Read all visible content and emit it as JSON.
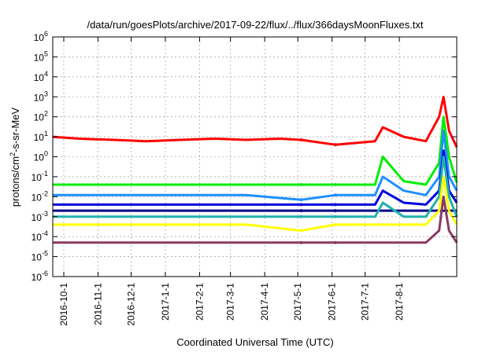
{
  "chart_data": {
    "type": "line",
    "title": "/data/run/goesPlots/archive/2017-09-22/flux/../flux/366daysMoonFluxes.txt",
    "xlabel": "Coordinated Universal Time (UTC)",
    "ylabel_main": "protons/cm",
    "ylabel_sup": "2",
    "ylabel_tail": "-s-sr-MeV",
    "yscale": "log",
    "ylim": [
      1e-06,
      1000000.0
    ],
    "xlim": [
      "2016-09-21",
      "2017-09-22"
    ],
    "y_ticks": [
      {
        "base": "10",
        "exp": "-6",
        "value": 1e-06
      },
      {
        "base": "10",
        "exp": "-5",
        "value": 1e-05
      },
      {
        "base": "10",
        "exp": "-4",
        "value": 0.0001
      },
      {
        "base": "10",
        "exp": "-3",
        "value": 0.001
      },
      {
        "base": "10",
        "exp": "-2",
        "value": 0.01
      },
      {
        "base": "10",
        "exp": "-1",
        "value": 0.1
      },
      {
        "base": "10",
        "exp": "0",
        "value": 1
      },
      {
        "base": "10",
        "exp": "1",
        "value": 10
      },
      {
        "base": "10",
        "exp": "2",
        "value": 100
      },
      {
        "base": "10",
        "exp": "3",
        "value": 1000
      },
      {
        "base": "10",
        "exp": "4",
        "value": 10000
      },
      {
        "base": "10",
        "exp": "5",
        "value": 100000
      },
      {
        "base": "10",
        "exp": "6",
        "value": 1000000
      }
    ],
    "x_ticks": [
      {
        "label": "2016-10-1",
        "date": "2016-10-01"
      },
      {
        "label": "2016-11-1",
        "date": "2016-11-01"
      },
      {
        "label": "2016-12-1",
        "date": "2016-12-01"
      },
      {
        "label": "2017-1-1",
        "date": "2017-01-01"
      },
      {
        "label": "2017-2-1",
        "date": "2017-02-01"
      },
      {
        "label": "2017-3-1",
        "date": "2017-03-01"
      },
      {
        "label": "2017-4-1",
        "date": "2017-04-01"
      },
      {
        "label": "2017-5-1",
        "date": "2017-05-01"
      },
      {
        "label": "2017-6-1",
        "date": "2017-06-01"
      },
      {
        "label": "2017-7-1",
        "date": "2017-07-01"
      },
      {
        "label": "2017-8-1",
        "date": "2017-08-01"
      }
    ],
    "grid": true,
    "data_gap": [
      "2017-05-04",
      "2017-06-04"
    ],
    "series": [
      {
        "color": "#ff0000",
        "x": [
          "2016-09-21",
          "2016-10-15",
          "2016-11-15",
          "2016-12-15",
          "2017-01-15",
          "2017-02-15",
          "2017-03-15",
          "2017-04-15",
          "2017-05-04",
          "2017-06-04",
          "2017-07-10",
          "2017-07-17",
          "2017-08-05",
          "2017-08-25",
          "2017-09-06",
          "2017-09-10",
          "2017-09-15",
          "2017-09-22"
        ],
        "y": [
          10,
          8,
          7,
          6,
          7,
          8,
          7,
          8,
          7,
          4,
          6,
          30,
          10,
          6,
          100,
          1000,
          20,
          3
        ]
      },
      {
        "color": "#00ee00",
        "x": [
          "2016-09-21",
          "2016-11-15",
          "2017-01-15",
          "2017-03-15",
          "2017-05-04",
          "2017-06-04",
          "2017-07-10",
          "2017-07-17",
          "2017-08-05",
          "2017-08-25",
          "2017-09-06",
          "2017-09-10",
          "2017-09-15",
          "2017-09-22"
        ],
        "y": [
          0.04,
          0.04,
          0.04,
          0.04,
          0.04,
          0.04,
          0.04,
          1,
          0.06,
          0.04,
          0.5,
          100,
          1,
          0.05
        ]
      },
      {
        "color": "#1e90ff",
        "x": [
          "2016-09-21",
          "2016-11-15",
          "2017-01-15",
          "2017-03-15",
          "2017-05-04",
          "2017-06-04",
          "2017-07-10",
          "2017-07-17",
          "2017-08-05",
          "2017-08-25",
          "2017-09-06",
          "2017-09-10",
          "2017-09-15",
          "2017-09-22"
        ],
        "y": [
          0.012,
          0.012,
          0.012,
          0.012,
          0.007,
          0.012,
          0.012,
          0.1,
          0.02,
          0.012,
          0.1,
          20,
          0.1,
          0.02
        ]
      },
      {
        "color": "#0000dd",
        "x": [
          "2016-09-21",
          "2016-11-15",
          "2017-01-15",
          "2017-03-15",
          "2017-05-04",
          "2017-06-04",
          "2017-07-10",
          "2017-07-17",
          "2017-08-05",
          "2017-08-25",
          "2017-09-06",
          "2017-09-10",
          "2017-09-15",
          "2017-09-22"
        ],
        "y": [
          0.004,
          0.004,
          0.004,
          0.004,
          0.004,
          0.004,
          0.004,
          0.02,
          0.005,
          0.004,
          0.02,
          2,
          0.02,
          0.005
        ]
      },
      {
        "color": "#00008b",
        "x": [
          "2016-09-21",
          "2017-05-04",
          "2017-06-04",
          "2017-09-22"
        ],
        "y": [
          0.002,
          0.002,
          0.002,
          0.002
        ]
      },
      {
        "color": "#20b2aa",
        "x": [
          "2016-09-21",
          "2016-11-15",
          "2017-01-15",
          "2017-03-15",
          "2017-05-04",
          "2017-06-04",
          "2017-07-10",
          "2017-07-17",
          "2017-08-05",
          "2017-08-25",
          "2017-09-06",
          "2017-09-10",
          "2017-09-15",
          "2017-09-22"
        ],
        "y": [
          0.001,
          0.001,
          0.001,
          0.001,
          0.001,
          0.001,
          0.001,
          0.005,
          0.001,
          0.001,
          0.01,
          1,
          0.01,
          0.001
        ]
      },
      {
        "color": "#ffff00",
        "x": [
          "2016-09-21",
          "2016-11-15",
          "2017-01-15",
          "2017-03-15",
          "2017-05-04",
          "2017-06-04",
          "2017-07-10",
          "2017-08-05",
          "2017-08-25",
          "2017-09-06",
          "2017-09-10",
          "2017-09-15",
          "2017-09-22"
        ],
        "y": [
          0.0004,
          0.0004,
          0.0004,
          0.0004,
          0.0002,
          0.0004,
          0.0004,
          0.0004,
          0.0004,
          0.002,
          0.1,
          0.002,
          0.0004
        ]
      },
      {
        "color": "#8b3a62",
        "x": [
          "2016-09-21",
          "2016-11-15",
          "2017-01-15",
          "2017-03-15",
          "2017-05-04",
          "2017-06-04",
          "2017-07-10",
          "2017-08-05",
          "2017-08-25",
          "2017-09-06",
          "2017-09-10",
          "2017-09-15",
          "2017-09-22"
        ],
        "y": [
          5e-05,
          5e-05,
          5e-05,
          5e-05,
          5e-05,
          5e-05,
          5e-05,
          5e-05,
          5e-05,
          0.0002,
          0.01,
          0.0002,
          5e-05
        ]
      }
    ]
  }
}
